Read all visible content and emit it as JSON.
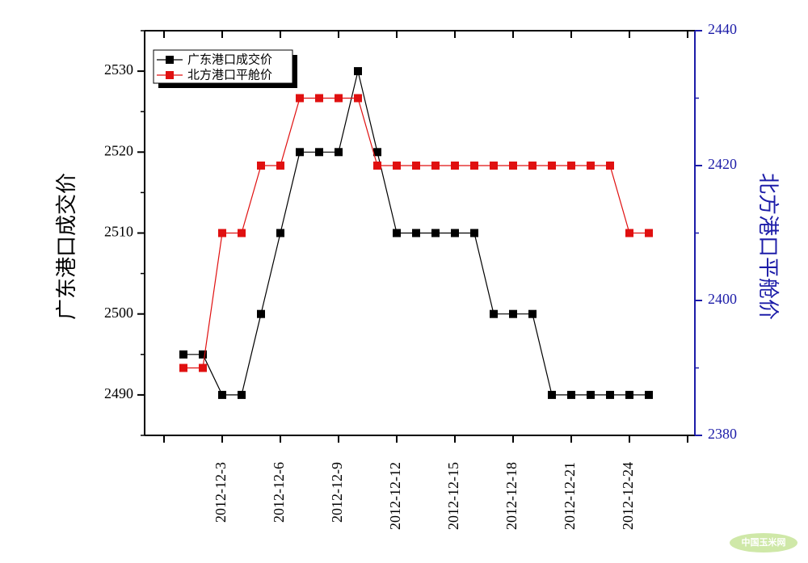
{
  "chart_data": {
    "type": "line",
    "categories": [
      null,
      null,
      "2012-12-3",
      null,
      null,
      "2012-12-6",
      null,
      null,
      "2012-12-9",
      null,
      null,
      "2012-12-12",
      null,
      null,
      "2012-12-15",
      null,
      null,
      "2012-12-18",
      null,
      null,
      "2012-12-21",
      null,
      null,
      "2012-12-24",
      null
    ],
    "y_label": "广东港口成交价",
    "y2_label": "北方港口平舱价",
    "ylim": [
      2485,
      2535
    ],
    "yticks": [
      2490,
      2500,
      2510,
      2520,
      2530
    ],
    "y2lim": [
      2380,
      2440
    ],
    "y2ticks": [
      2380,
      2400,
      2420,
      2440
    ],
    "y2_color": "#1c1ca8",
    "legend": "upper left",
    "series": [
      {
        "name": "广东港口成交价",
        "color": "#000000",
        "values": [
          2495,
          2495,
          2490,
          2490,
          2500,
          2510,
          2520,
          2520,
          2520,
          2530,
          2520,
          2510,
          2510,
          2510,
          2510,
          2510,
          2500,
          2500,
          2500,
          2490,
          2490,
          2490,
          2490,
          2490,
          2490
        ]
      },
      {
        "name": "北方港口平舱价",
        "color": "#e01010",
        "axis": "y2",
        "values": [
          2390,
          2390,
          2410,
          2410,
          2420,
          2420,
          2430,
          2430,
          2430,
          2430,
          2420,
          2420,
          2420,
          2420,
          2420,
          2420,
          2420,
          2420,
          2420,
          2420,
          2420,
          2420,
          2420,
          2410,
          2410
        ]
      }
    ],
    "watermark": "中国玉米网"
  }
}
